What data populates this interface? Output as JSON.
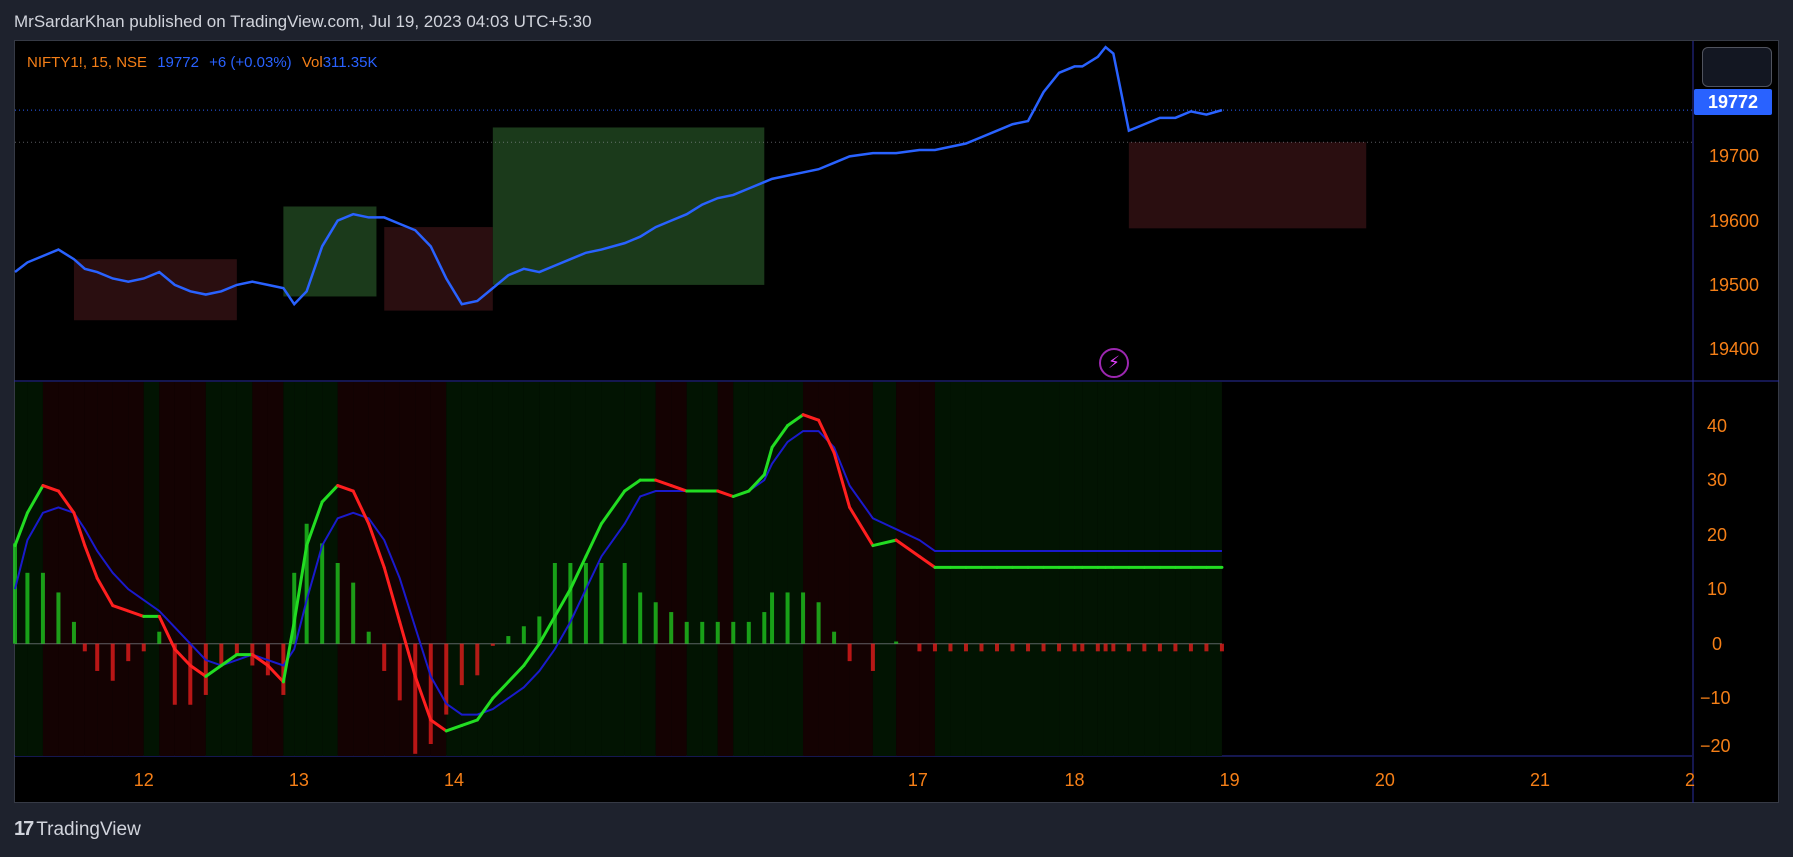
{
  "header": {
    "published": "MrSardarKhan published on TradingView.com, Jul 19, 2023 04:03 UTC+5:30"
  },
  "legend": {
    "symbol": "NIFTY1!, 15, NSE",
    "price": "19772",
    "change": "+6 (+0.03%)",
    "vol_label": "Vol",
    "vol_value": "311.35K"
  },
  "price_badge": "19772",
  "footer": {
    "brand": "TradingView"
  },
  "icons": {
    "bolt": "lightning-icon",
    "logo": "tradingview-logo-icon"
  },
  "colors": {
    "price_line": "#2962ff",
    "up": "#22dd22",
    "down": "#ff1f1f",
    "signal": "#1a1acc",
    "signal_alt": "#6a1b9a",
    "tick": "#f57f17",
    "green_zone": "#1b3a1b",
    "red_zone": "#2a0e10"
  },
  "chart_data": [
    {
      "type": "line",
      "name": "price",
      "yticks": [
        19700,
        19600,
        19500,
        19400
      ],
      "ylim": [
        19352,
        19878
      ],
      "xlim": [
        11.17,
        21.98
      ],
      "last_value": 19772,
      "x": [
        11.17,
        11.25,
        11.35,
        11.45,
        11.55,
        11.62,
        11.7,
        11.8,
        11.9,
        12.0,
        12.1,
        12.2,
        12.3,
        12.4,
        12.5,
        12.6,
        12.7,
        12.8,
        12.9,
        12.97,
        13.05,
        13.15,
        13.25,
        13.35,
        13.45,
        13.55,
        13.65,
        13.75,
        13.85,
        13.95,
        14.05,
        14.15,
        14.25,
        14.35,
        14.45,
        14.55,
        14.65,
        14.75,
        14.85,
        14.95,
        15.1,
        15.2,
        15.3,
        15.4,
        15.5,
        15.6,
        15.7,
        15.8,
        15.9,
        16.0,
        16.05,
        16.15,
        16.25,
        16.35,
        16.45,
        16.55,
        16.7,
        16.85,
        17.0,
        17.1,
        17.2,
        17.3,
        17.4,
        17.5,
        17.6,
        17.7,
        17.8,
        17.9,
        18.0,
        18.05,
        18.15,
        18.2,
        18.25,
        18.35,
        18.45,
        18.55,
        18.65,
        18.75,
        18.85,
        18.95
      ],
      "values": [
        19520,
        19535,
        19545,
        19555,
        19540,
        19525,
        19520,
        19510,
        19505,
        19510,
        19520,
        19500,
        19490,
        19485,
        19490,
        19500,
        19505,
        19500,
        19495,
        19470,
        19490,
        19560,
        19600,
        19610,
        19605,
        19605,
        19595,
        19585,
        19560,
        19510,
        19470,
        19475,
        19495,
        19515,
        19525,
        19520,
        19530,
        19540,
        19550,
        19555,
        19565,
        19575,
        19590,
        19600,
        19610,
        19625,
        19635,
        19640,
        19650,
        19660,
        19665,
        19670,
        19675,
        19680,
        19690,
        19700,
        19705,
        19705,
        19710,
        19710,
        19715,
        19720,
        19730,
        19740,
        19750,
        19755,
        19800,
        19830,
        19840,
        19840,
        19855,
        19870,
        19860,
        19740,
        19750,
        19760,
        19760,
        19770,
        19765,
        19772
      ]
    },
    {
      "type": "line",
      "name": "oscillator",
      "yticks": [
        40,
        30,
        20,
        10,
        0,
        -10,
        -20
      ],
      "ylim": [
        -20.6,
        48
      ],
      "xlim": [
        11.17,
        21.98
      ],
      "x": [
        11.17,
        11.25,
        11.35,
        11.45,
        11.55,
        11.62,
        11.7,
        11.8,
        11.9,
        12.0,
        12.1,
        12.2,
        12.3,
        12.4,
        12.5,
        12.6,
        12.7,
        12.8,
        12.9,
        12.97,
        13.05,
        13.15,
        13.25,
        13.35,
        13.45,
        13.55,
        13.65,
        13.75,
        13.85,
        13.95,
        14.05,
        14.15,
        14.25,
        14.35,
        14.45,
        14.55,
        14.65,
        14.75,
        14.85,
        14.95,
        15.1,
        15.2,
        15.3,
        15.4,
        15.5,
        15.6,
        15.7,
        15.8,
        15.9,
        16.0,
        16.05,
        16.15,
        16.25,
        16.35,
        16.45,
        16.55,
        16.7,
        16.85,
        17.0,
        17.1,
        17.2,
        17.3,
        17.4,
        17.5,
        17.6,
        17.7,
        17.8,
        17.9,
        18.0,
        18.05,
        18.15,
        18.2,
        18.25,
        18.35,
        18.45,
        18.55,
        18.65,
        18.75,
        18.85,
        18.95
      ],
      "osc": [
        18,
        24,
        29,
        28,
        24,
        18,
        12,
        7,
        6,
        5,
        5,
        -1,
        -4,
        -6,
        -4,
        -2,
        -2,
        -4,
        -7,
        4,
        18,
        26,
        29,
        28,
        22,
        14,
        4,
        -6,
        -14,
        -16,
        -15,
        -14,
        -10,
        -7,
        -4,
        0,
        5,
        10,
        16,
        22,
        28,
        30,
        30,
        29,
        28,
        28,
        28,
        27,
        28,
        31,
        36,
        40,
        42,
        41,
        35,
        25,
        18,
        19,
        16,
        14,
        14,
        14,
        14,
        14,
        14,
        14,
        14,
        14,
        14,
        14,
        14,
        14,
        14,
        14,
        14,
        14,
        14,
        14,
        14,
        14
      ],
      "signal": [
        10,
        19,
        24,
        25,
        24,
        21,
        17,
        13,
        10,
        8,
        6,
        3,
        0,
        -3,
        -4,
        -3,
        -2,
        -3,
        -4,
        -1,
        8,
        18,
        23,
        24,
        23,
        19,
        12,
        3,
        -6,
        -11,
        -13,
        -13,
        -12,
        -10,
        -8,
        -5,
        -1,
        4,
        10,
        16,
        22,
        27,
        28,
        28,
        28,
        28,
        28,
        27,
        28,
        30,
        33,
        37,
        39,
        39,
        36,
        29,
        23,
        21,
        19,
        17,
        17,
        17,
        17,
        17,
        17,
        17,
        17,
        17,
        17,
        17,
        17,
        17,
        17,
        17,
        17,
        17,
        17,
        17,
        17,
        17
      ],
      "xticks": [
        "12",
        "13",
        "14",
        "17",
        "18",
        "19",
        "20",
        "21",
        "2"
      ]
    }
  ]
}
